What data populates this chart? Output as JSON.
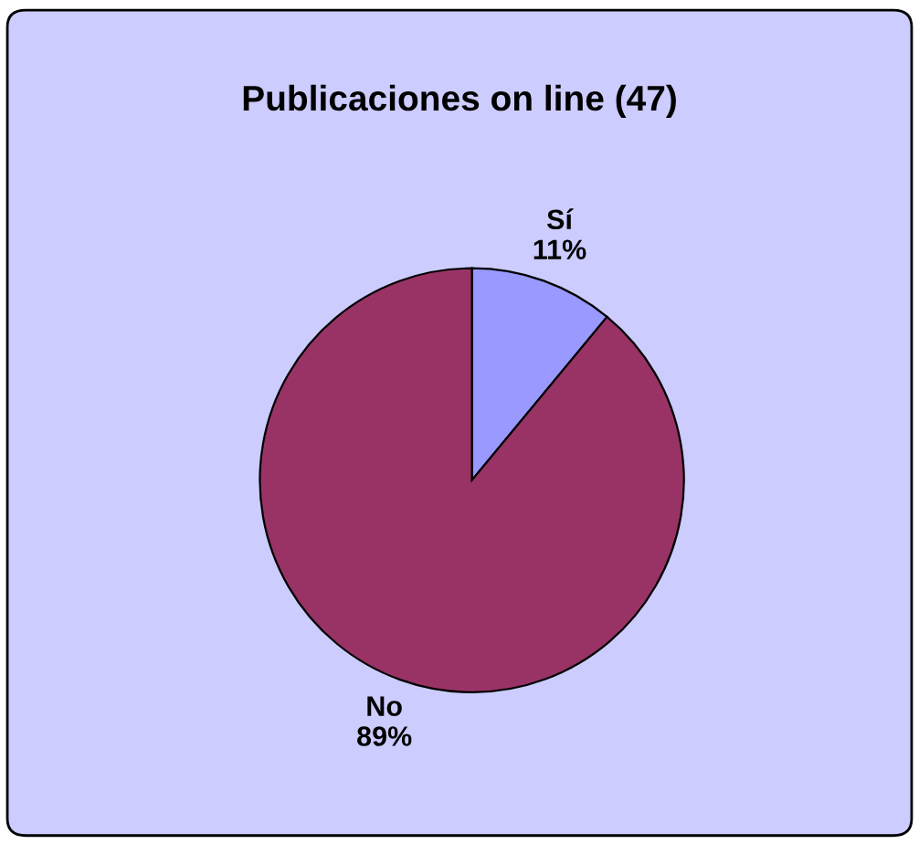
{
  "chart_data": {
    "type": "pie",
    "title": "Publicaciones on line (47)",
    "categories": [
      "Sí",
      "No"
    ],
    "values": [
      11,
      89
    ],
    "colors": [
      "#9999ff",
      "#993366"
    ],
    "value_labels": [
      "11%",
      "89%"
    ],
    "legend": false
  }
}
